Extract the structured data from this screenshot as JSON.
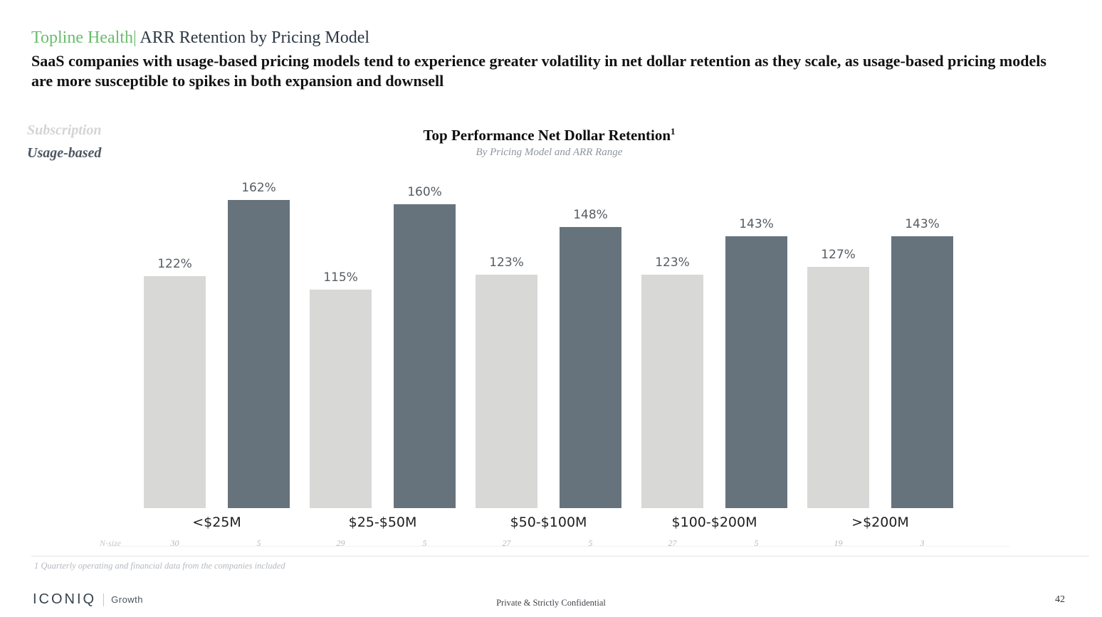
{
  "header": {
    "product": "Topline Health|",
    "title": " ARR Retention by Pricing Model",
    "subtitle": "SaaS companies with usage-based pricing models tend to experience greater volatility in net dollar retention as they scale, as usage-based pricing models are more susceptible to spikes in both expansion and downsell"
  },
  "chart_data": {
    "type": "bar",
    "title": "Top Performance Net Dollar Retention",
    "title_superscript": "1",
    "subtitle": "By Pricing Model and ARR Range",
    "categories": [
      "<$25M",
      "$25-$50M",
      "$50-$100M",
      "$100-$200M",
      ">$200M"
    ],
    "series": [
      {
        "name": "Subscription",
        "color": "#d8d8d7",
        "values": [
          122,
          115,
          123,
          123,
          127
        ]
      },
      {
        "name": "Usage-based",
        "color": "#67737c",
        "values": [
          162,
          160,
          148,
          143,
          143
        ]
      }
    ],
    "unit": "%",
    "value_labels": true,
    "grid": false,
    "legend_position": "top-left",
    "ylim": [
      0,
      170
    ],
    "n_size_label": "N-size",
    "n_sizes": [
      [
        30,
        5
      ],
      [
        29,
        5
      ],
      [
        27,
        5
      ],
      [
        27,
        5
      ],
      [
        19,
        3
      ]
    ]
  },
  "footnote": "1 Quarterly operating and financial data from the companies included",
  "footer": {
    "brand": "ICONIQ",
    "brand_sub": "Growth",
    "confidential": "Private & Strictly Confidential",
    "page_number": "42"
  },
  "colors": {
    "accent_green": "#69bd6c",
    "bar_light": "#d8d8d7",
    "bar_dark": "#67737c"
  }
}
